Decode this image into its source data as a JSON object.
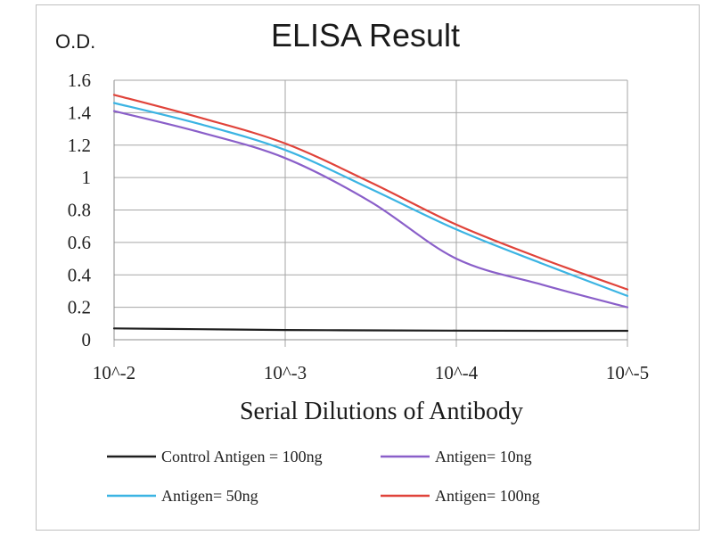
{
  "chart_data": {
    "type": "line",
    "title": "ELISA Result",
    "ylabel": "O.D.",
    "xlabel": "Serial  Dilutions  of Antibody",
    "ylim": [
      0,
      1.6
    ],
    "y_ticks": [
      "0",
      "0.2",
      "0.4",
      "0.6",
      "0.8",
      "1",
      "1.2",
      "1.4",
      "1.6"
    ],
    "y_tick_values": [
      0,
      0.2,
      0.4,
      0.6,
      0.8,
      1.0,
      1.2,
      1.4,
      1.6
    ],
    "x_ticks": [
      "10^-2",
      "10^-3",
      "10^-4",
      "10^-5"
    ],
    "x_scale": "log (dilution 10^-2 to 10^-5)",
    "grid": true,
    "legend_position": "bottom",
    "series": [
      {
        "name": "Control Antigen = 100ng",
        "color": "#1f1f1f",
        "points": [
          [
            -2,
            0.07
          ],
          [
            -2.5,
            0.065
          ],
          [
            -3,
            0.06
          ],
          [
            -3.5,
            0.058
          ],
          [
            -4,
            0.056
          ],
          [
            -4.5,
            0.055
          ],
          [
            -5,
            0.055
          ]
        ]
      },
      {
        "name": "Antigen= 10ng",
        "color": "#8a5fc9",
        "points": [
          [
            -2,
            1.41
          ],
          [
            -2.5,
            1.28
          ],
          [
            -3,
            1.12
          ],
          [
            -3.5,
            0.85
          ],
          [
            -4,
            0.5
          ],
          [
            -4.5,
            0.34
          ],
          [
            -5,
            0.2
          ]
        ]
      },
      {
        "name": "Antigen= 50ng",
        "color": "#3bb4e3",
        "points": [
          [
            -2,
            1.46
          ],
          [
            -2.5,
            1.33
          ],
          [
            -3,
            1.17
          ],
          [
            -3.5,
            0.93
          ],
          [
            -4,
            0.68
          ],
          [
            -4.5,
            0.47
          ],
          [
            -5,
            0.27
          ]
        ]
      },
      {
        "name": "Antigen= 100ng",
        "color": "#e0433a",
        "points": [
          [
            -2,
            1.51
          ],
          [
            -2.5,
            1.37
          ],
          [
            -3,
            1.21
          ],
          [
            -3.5,
            0.97
          ],
          [
            -4,
            0.71
          ],
          [
            -4.5,
            0.5
          ],
          [
            -5,
            0.31
          ]
        ]
      }
    ]
  }
}
